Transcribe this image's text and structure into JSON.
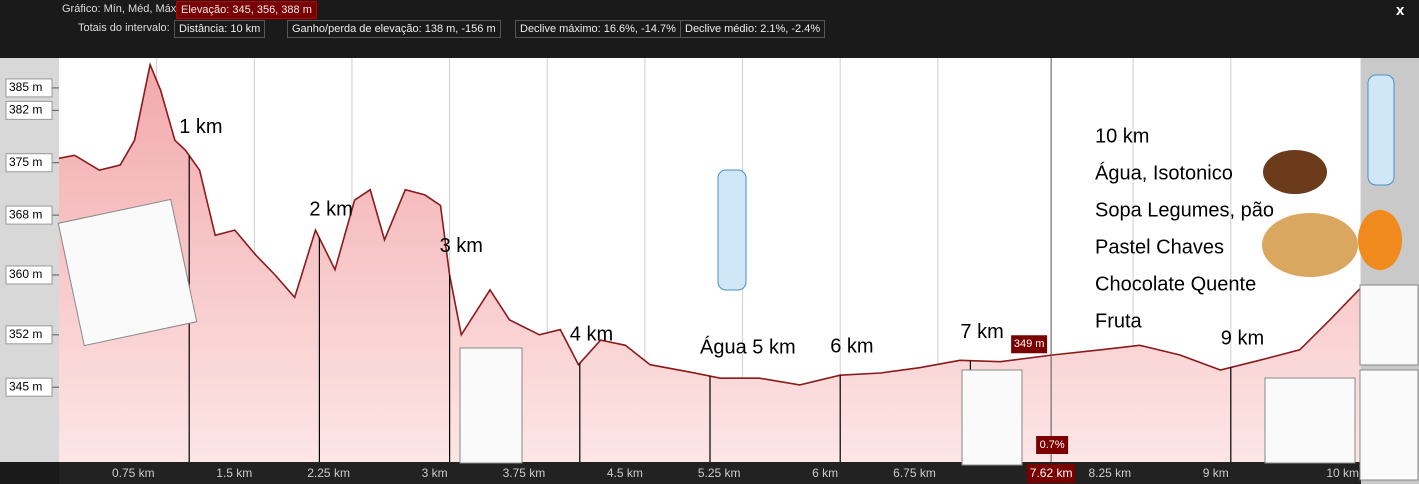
{
  "header": {
    "chart_label": "Gráfico: Mín, Méd, Máx",
    "elevation": "Elevação: 345, 356, 388 m",
    "close": "x",
    "totals_label": "Totais do intervalo:",
    "totals": [
      "Distância: 10 km",
      "Ganho/perda de elevação: 138 m, -156 m",
      "Declive máximo: 16.6%, -14.7%",
      "Declive médio: 2.1%, -2.4%"
    ]
  },
  "chart_data": {
    "type": "area",
    "color": "#8b1a1a",
    "x": [
      0,
      0.12,
      0.31,
      0.47,
      0.58,
      0.7,
      0.78,
      0.89,
      0.97,
      1.08,
      1.2,
      1.35,
      1.51,
      1.66,
      1.81,
      1.97,
      2.12,
      2.27,
      2.39,
      2.5,
      2.66,
      2.81,
      2.93,
      3.0,
      3.09,
      3.31,
      3.46,
      3.69,
      3.85,
      3.99,
      4.16,
      4.35,
      4.54,
      4.85,
      5.08,
      5.38,
      5.69,
      6.0,
      6.31,
      6.61,
      6.92,
      7.23,
      7.63,
      8.0,
      8.3,
      8.61,
      8.92,
      9.22,
      9.53,
      9.76,
      10.0
    ],
    "values": [
      375.6,
      376.0,
      374.0,
      374.7,
      378.0,
      388.1,
      384.7,
      378.0,
      376.7,
      374.0,
      365.3,
      366.0,
      362.7,
      360.0,
      357.0,
      366.0,
      360.7,
      370.0,
      371.4,
      364.7,
      371.4,
      370.7,
      369.3,
      360.0,
      352.0,
      358.0,
      354.0,
      352.0,
      352.7,
      348.0,
      351.3,
      350.6,
      348.0,
      347.0,
      346.2,
      346.2,
      345.3,
      346.6,
      346.9,
      347.6,
      348.6,
      348.4,
      349.3,
      350.0,
      350.6,
      349.3,
      347.3,
      348.6,
      350.0,
      354.0,
      358.3
    ],
    "xlim": [
      0,
      10
    ],
    "ylim": [
      335,
      389
    ],
    "xticks": [
      {
        "value": 0.75,
        "label": "0.75 km"
      },
      {
        "value": 1.5,
        "label": "1.5 km"
      },
      {
        "value": 2.25,
        "label": "2.25 km"
      },
      {
        "value": 3,
        "label": "3 km"
      },
      {
        "value": 3.75,
        "label": "3.75 km"
      },
      {
        "value": 4.5,
        "label": "4.5 km"
      },
      {
        "value": 5.25,
        "label": "5.25 km"
      },
      {
        "value": 6,
        "label": "6 km"
      },
      {
        "value": 6.75,
        "label": "6.75 km"
      },
      {
        "value": 8.25,
        "label": "8.25 km"
      },
      {
        "value": 9,
        "label": "9 km"
      },
      {
        "value": 10,
        "label": "10 km"
      }
    ],
    "yticks": [
      {
        "value": 345,
        "label": "345 m"
      },
      {
        "value": 352,
        "label": "352 m"
      },
      {
        "value": 360,
        "label": "360 m"
      },
      {
        "value": 368,
        "label": "368 m"
      },
      {
        "value": 375,
        "label": "375 m"
      },
      {
        "value": 382,
        "label": "382 m"
      },
      {
        "value": 385,
        "label": "385 m"
      }
    ],
    "grid": true,
    "markers": [
      {
        "x": 1,
        "label": "1 km"
      },
      {
        "x": 2,
        "label": "2 km"
      },
      {
        "x": 3,
        "label": "3 km"
      },
      {
        "x": 4,
        "label": "4 km"
      },
      {
        "x": 5,
        "label": "Água 5 km"
      },
      {
        "x": 6,
        "label": "6 km"
      },
      {
        "x": 7,
        "label": "7 km"
      },
      {
        "x": 9,
        "label": "9 km"
      }
    ],
    "annotation": [
      "10 km",
      "Água, Isotonico",
      "Sopa Legumes, pão",
      "Pastel Chaves",
      "Chocolate Quente",
      "Fruta"
    ],
    "cursor": {
      "x": {
        "value": 7.62,
        "label": "7.62 km"
      },
      "y": {
        "value": 349,
        "label": "349 m"
      },
      "slope": "0.7%"
    }
  }
}
